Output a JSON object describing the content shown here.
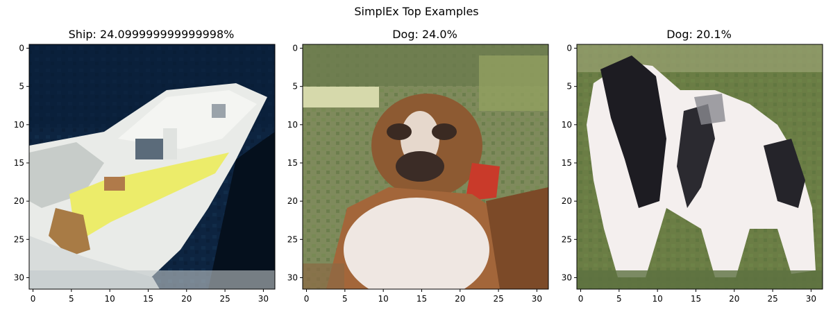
{
  "figure": {
    "suptitle": "SimplEx Top Examples"
  },
  "panels": [
    {
      "title": "Ship: 24.099999999999998%",
      "image_subject": "boat on dark water",
      "x_ticks": [
        "0",
        "5",
        "10",
        "15",
        "20",
        "25",
        "30"
      ],
      "y_ticks": [
        "0",
        "5",
        "10",
        "15",
        "20",
        "25",
        "30"
      ]
    },
    {
      "title": "Dog: 24.0%",
      "image_subject": "brown and white boxer dog on grass",
      "x_ticks": [
        "0",
        "5",
        "10",
        "15",
        "20",
        "25",
        "30"
      ],
      "y_ticks": [
        "0",
        "5",
        "10",
        "15",
        "20",
        "25",
        "30"
      ]
    },
    {
      "title": "Dog: 20.1%",
      "image_subject": "black and white dog on grass",
      "x_ticks": [
        "0",
        "5",
        "10",
        "15",
        "20",
        "25",
        "30"
      ],
      "y_ticks": [
        "0",
        "5",
        "10",
        "15",
        "20",
        "25",
        "30"
      ]
    }
  ]
}
